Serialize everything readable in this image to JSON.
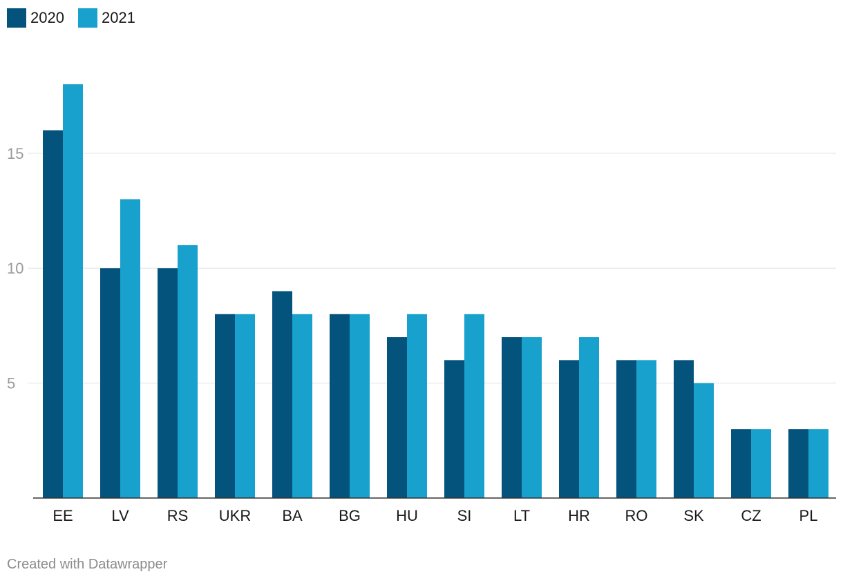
{
  "chart_data": {
    "type": "bar",
    "title": "",
    "xlabel": "",
    "ylabel": "",
    "categories": [
      "EE",
      "LV",
      "RS",
      "UKR",
      "BA",
      "BG",
      "HU",
      "SI",
      "LT",
      "HR",
      "RO",
      "SK",
      "CZ",
      "PL"
    ],
    "series": [
      {
        "name": "2020",
        "color": "#03537c",
        "values": [
          16,
          10,
          10,
          8,
          9,
          8,
          7,
          6,
          7,
          6,
          6,
          6,
          3,
          3
        ]
      },
      {
        "name": "2021",
        "color": "#18a1cd",
        "values": [
          18,
          13,
          11,
          8,
          8,
          8,
          8,
          8,
          7,
          7,
          6,
          5,
          3,
          3
        ]
      }
    ],
    "ylim": [
      0,
      18
    ],
    "yticks": [
      5,
      10,
      15
    ],
    "grid": true,
    "legend": "top-left"
  },
  "footer": {
    "credit": "Created with Datawrapper"
  }
}
